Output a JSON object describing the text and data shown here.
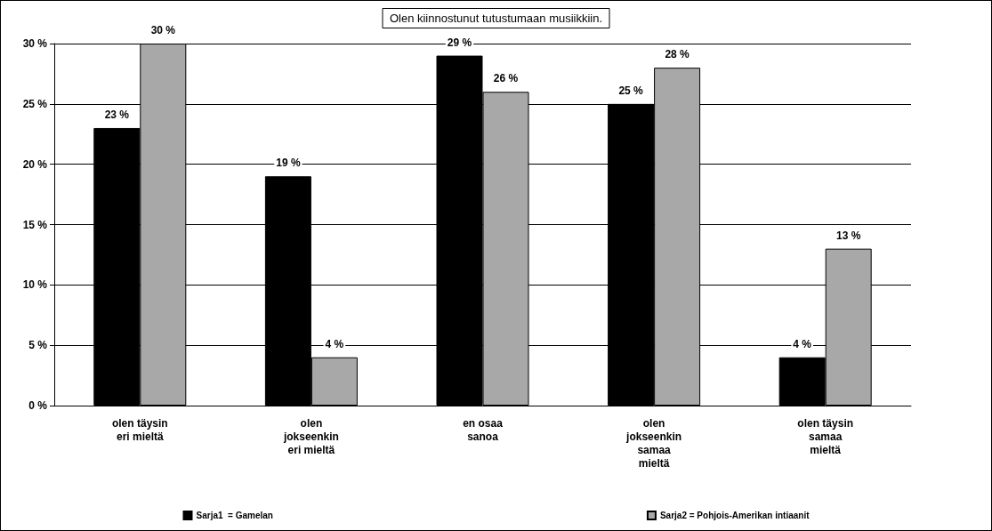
{
  "chart_data": {
    "type": "bar",
    "title": "Olen kiinnostunut tutustumaan musiikkiin.",
    "categories": [
      "olen täysin\neri mieltä",
      "olen\njokseenkin\neri mieltä",
      "en osaa\nsanoa",
      "olen\njokseenkin\nsamaa\nmieltä",
      "olen täysin\nsamaa\nmieltä"
    ],
    "series": [
      {
        "name": "Sarja1  = Gamelan",
        "color": "#000000",
        "values": [
          23,
          19,
          29,
          25,
          4
        ],
        "value_labels": [
          "23 %",
          "19 %",
          "29 %",
          "25 %",
          "4 %"
        ]
      },
      {
        "name": "Sarja2 = Pohjois-Amerikan intiaanit",
        "color": "#a8a8a8",
        "values": [
          30,
          4,
          26,
          28,
          13
        ],
        "value_labels": [
          "30 %",
          "4 %",
          "26 %",
          "28 %",
          "13 %"
        ]
      }
    ],
    "ylim": [
      0,
      30
    ],
    "yticks": [
      {
        "value": 0,
        "label": "0 %"
      },
      {
        "value": 5,
        "label": "5 %"
      },
      {
        "value": 10,
        "label": "10 %"
      },
      {
        "value": 15,
        "label": "15 %"
      },
      {
        "value": 20,
        "label": "20 %"
      },
      {
        "value": 25,
        "label": "25 %"
      },
      {
        "value": 30,
        "label": "30 %"
      }
    ],
    "grid": "y",
    "legend": "bottom"
  }
}
